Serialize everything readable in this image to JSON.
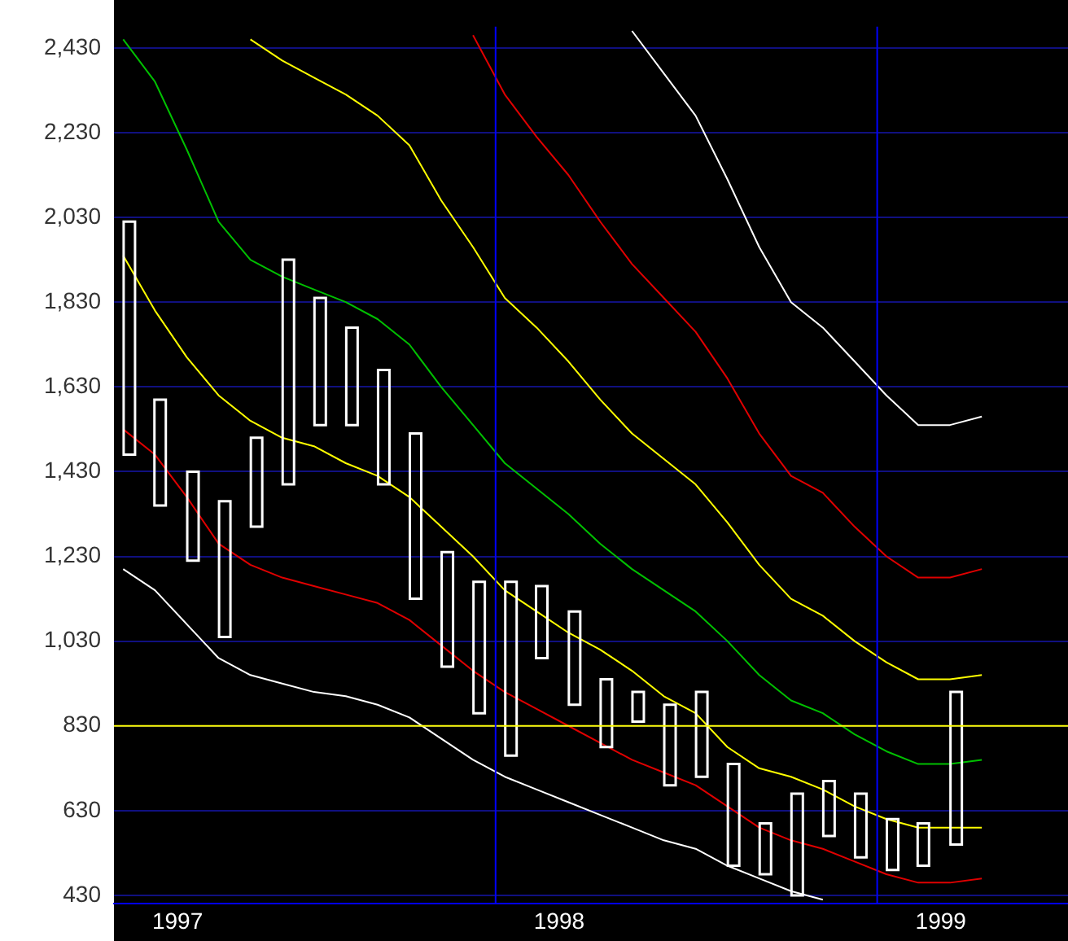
{
  "chart_data": {
    "type": "bar",
    "x": [
      "1997-01-16",
      "1997-02-15",
      "1997-03-16",
      "1997-04-16",
      "1997-05-16",
      "1997-06-16",
      "1997-07-16",
      "1997-08-16",
      "1997-09-16",
      "1997-10-16",
      "1997-11-16",
      "1997-12-16",
      "1998-01-16",
      "1998-02-15",
      "1998-03-16",
      "1998-04-16",
      "1998-05-16",
      "1998-06-16",
      "1998-07-16",
      "1998-08-16",
      "1998-09-16",
      "1998-10-16",
      "1998-11-16",
      "1998-12-16",
      "1999-01-16",
      "1999-02-15",
      "1999-03-16"
    ],
    "base": [
      1470,
      1350,
      1220,
      1040,
      1300,
      1400,
      1540,
      1540,
      1400,
      1130,
      970,
      860,
      760,
      990,
      880,
      780,
      840,
      690,
      710,
      500,
      480,
      430,
      570,
      520,
      490,
      500,
      550
    ],
    "values": [
      550,
      250,
      210,
      320,
      210,
      530,
      300,
      230,
      270,
      390,
      270,
      310,
      410,
      170,
      220,
      160,
      70,
      190,
      200,
      240,
      120,
      240,
      130,
      150,
      120,
      100,
      360
    ],
    "color": "#ffffff",
    "series": [
      {
        "type": "line",
        "color": "#00c000",
        "x": [
          "1997-01-10",
          "1997-02-10",
          "1997-03-10",
          "1997-04-10",
          "1997-05-10",
          "1997-06-10",
          "1997-07-10",
          "1997-08-10",
          "1997-09-10",
          "1997-10-10",
          "1997-11-10",
          "1997-12-10",
          "1998-01-10",
          "1998-02-10",
          "1998-03-10",
          "1998-04-10",
          "1998-05-10",
          "1998-06-10",
          "1998-07-10",
          "1998-08-10",
          "1998-09-10",
          "1998-10-10",
          "1998-11-10",
          "1998-12-10",
          "1999-01-10",
          "1999-02-10",
          "1999-03-10",
          "1999-04-10"
        ],
        "values": [
          2450,
          2350,
          2190,
          2020,
          1930,
          1890,
          1860,
          1830,
          1790,
          1730,
          1630,
          1540,
          1450,
          1390,
          1330,
          1260,
          1200,
          1150,
          1100,
          1030,
          950,
          890,
          860,
          810,
          770,
          740,
          740,
          750
        ]
      },
      {
        "type": "line",
        "color": "#ffff00",
        "x": [
          "1997-01-10",
          "1997-02-10",
          "1997-03-10",
          "1997-04-10",
          "1997-05-10",
          "1997-06-10",
          "1997-07-10",
          "1997-08-10",
          "1997-09-10",
          "1997-10-10",
          "1997-11-10",
          "1997-12-10",
          "1998-01-10",
          "1998-02-10",
          "1998-03-10",
          "1998-04-10",
          "1998-05-10",
          "1998-06-10",
          "1998-07-10",
          "1998-08-10",
          "1998-09-10",
          "1998-10-10",
          "1998-11-10",
          "1998-12-10",
          "1999-01-10",
          "1999-02-10",
          "1999-03-10",
          "1999-04-10"
        ],
        "values": [
          1940,
          1810,
          1700,
          1610,
          1550,
          1510,
          1490,
          1450,
          1420,
          1370,
          1300,
          1230,
          1150,
          1100,
          1050,
          1010,
          960,
          900,
          860,
          780,
          730,
          710,
          680,
          640,
          610,
          590,
          590,
          590
        ]
      },
      {
        "type": "line",
        "color": "#ffff00",
        "x": [
          "1997-05-10",
          "1997-06-10",
          "1997-07-10",
          "1997-08-10",
          "1997-09-10",
          "1997-10-10",
          "1997-11-10",
          "1997-12-10",
          "1998-01-10",
          "1998-02-10",
          "1998-03-10",
          "1998-04-10",
          "1998-05-10",
          "1998-06-10",
          "1998-07-10",
          "1998-08-10",
          "1998-09-10",
          "1998-10-10",
          "1998-11-10",
          "1998-12-10",
          "1999-01-10",
          "1999-02-10",
          "1999-03-10",
          "1999-04-10"
        ],
        "values": [
          2450,
          2400,
          2360,
          2320,
          2270,
          2200,
          2070,
          1960,
          1840,
          1770,
          1690,
          1600,
          1520,
          1460,
          1400,
          1310,
          1210,
          1130,
          1090,
          1030,
          980,
          940,
          940,
          950
        ]
      },
      {
        "type": "line",
        "color": "#e00000",
        "x": [
          "1997-01-10",
          "1997-02-10",
          "1997-03-10",
          "1997-04-10",
          "1997-05-10",
          "1997-06-10",
          "1997-07-10",
          "1997-08-10",
          "1997-09-10",
          "1997-10-10",
          "1997-11-10",
          "1997-12-10",
          "1998-01-10",
          "1998-02-10",
          "1998-03-10",
          "1998-04-10",
          "1998-05-10",
          "1998-06-10",
          "1998-07-10",
          "1998-08-10",
          "1998-09-10",
          "1998-10-10",
          "1998-11-10",
          "1998-12-10",
          "1999-01-10",
          "1999-02-10",
          "1999-03-10",
          "1999-04-10"
        ],
        "values": [
          1530,
          1470,
          1370,
          1260,
          1210,
          1180,
          1160,
          1140,
          1120,
          1080,
          1020,
          960,
          910,
          870,
          830,
          790,
          750,
          720,
          690,
          640,
          590,
          560,
          540,
          510,
          480,
          460,
          460,
          470
        ]
      },
      {
        "type": "line",
        "color": "#e00000",
        "x": [
          "1997-12-10",
          "1998-01-10",
          "1998-02-10",
          "1998-03-10",
          "1998-04-10",
          "1998-05-10",
          "1998-06-10",
          "1998-07-10",
          "1998-08-10",
          "1998-09-10",
          "1998-10-10",
          "1998-11-10",
          "1998-12-10",
          "1999-01-10",
          "1999-02-10",
          "1999-03-10",
          "1999-04-10"
        ],
        "values": [
          2460,
          2320,
          2220,
          2130,
          2020,
          1920,
          1840,
          1760,
          1650,
          1520,
          1420,
          1380,
          1300,
          1230,
          1180,
          1180,
          1200
        ]
      },
      {
        "type": "line",
        "color": "#ffffff",
        "x": [
          "1997-01-10",
          "1997-02-10",
          "1997-03-10",
          "1997-04-10",
          "1997-05-10",
          "1997-06-10",
          "1997-07-10",
          "1997-08-10",
          "1997-09-10",
          "1997-10-10",
          "1997-11-10",
          "1997-12-10",
          "1998-01-10",
          "1998-02-10",
          "1998-03-10",
          "1998-04-10",
          "1998-05-10",
          "1998-06-10",
          "1998-07-10",
          "1998-08-10",
          "1998-09-10",
          "1998-10-10",
          "1998-11-10"
        ],
        "values": [
          1200,
          1150,
          1070,
          990,
          950,
          930,
          910,
          900,
          880,
          850,
          800,
          750,
          710,
          680,
          650,
          620,
          590,
          560,
          540,
          500,
          470,
          440,
          420
        ]
      },
      {
        "type": "line",
        "color": "#ffffff",
        "x": [
          "1998-05-10",
          "1998-06-10",
          "1998-07-10",
          "1998-08-10",
          "1998-09-10",
          "1998-10-10",
          "1998-11-10",
          "1998-12-10",
          "1999-01-10",
          "1999-02-10",
          "1999-03-10",
          "1999-04-10"
        ],
        "values": [
          2470,
          2370,
          2270,
          2120,
          1960,
          1830,
          1770,
          1690,
          1610,
          1540,
          1540,
          1560
        ]
      }
    ],
    "xlim": [
      "1997-01",
      "1999-07"
    ],
    "xticks": [
      {
        "value": "1997-03",
        "label": "1997"
      },
      {
        "value": "1998-03",
        "label": "1998"
      },
      {
        "value": "1999-03",
        "label": "1999"
      }
    ],
    "ylim": [
      410,
      2480
    ],
    "yticks": [
      430,
      630,
      830,
      {
        "value": 1030,
        "label": "1,030"
      },
      {
        "value": 1230,
        "label": "1,230"
      },
      {
        "value": 1430,
        "label": "1,430"
      },
      {
        "value": 1630,
        "label": "1,630"
      },
      {
        "value": 1830,
        "label": "1,830"
      },
      {
        "value": 2030,
        "label": "2,030"
      },
      {
        "value": 2230,
        "label": "2,230"
      },
      {
        "value": 2430,
        "label": "2,430"
      }
    ],
    "ref_lines": [
      {
        "axis": "y",
        "value": 830,
        "color": "#ffff00"
      },
      {
        "axis": "x",
        "value": "1998-01",
        "color": "#0000ff"
      },
      {
        "axis": "x",
        "value": "1999-01",
        "color": "#0000ff"
      }
    ],
    "grid": "y",
    "marker": "none"
  }
}
